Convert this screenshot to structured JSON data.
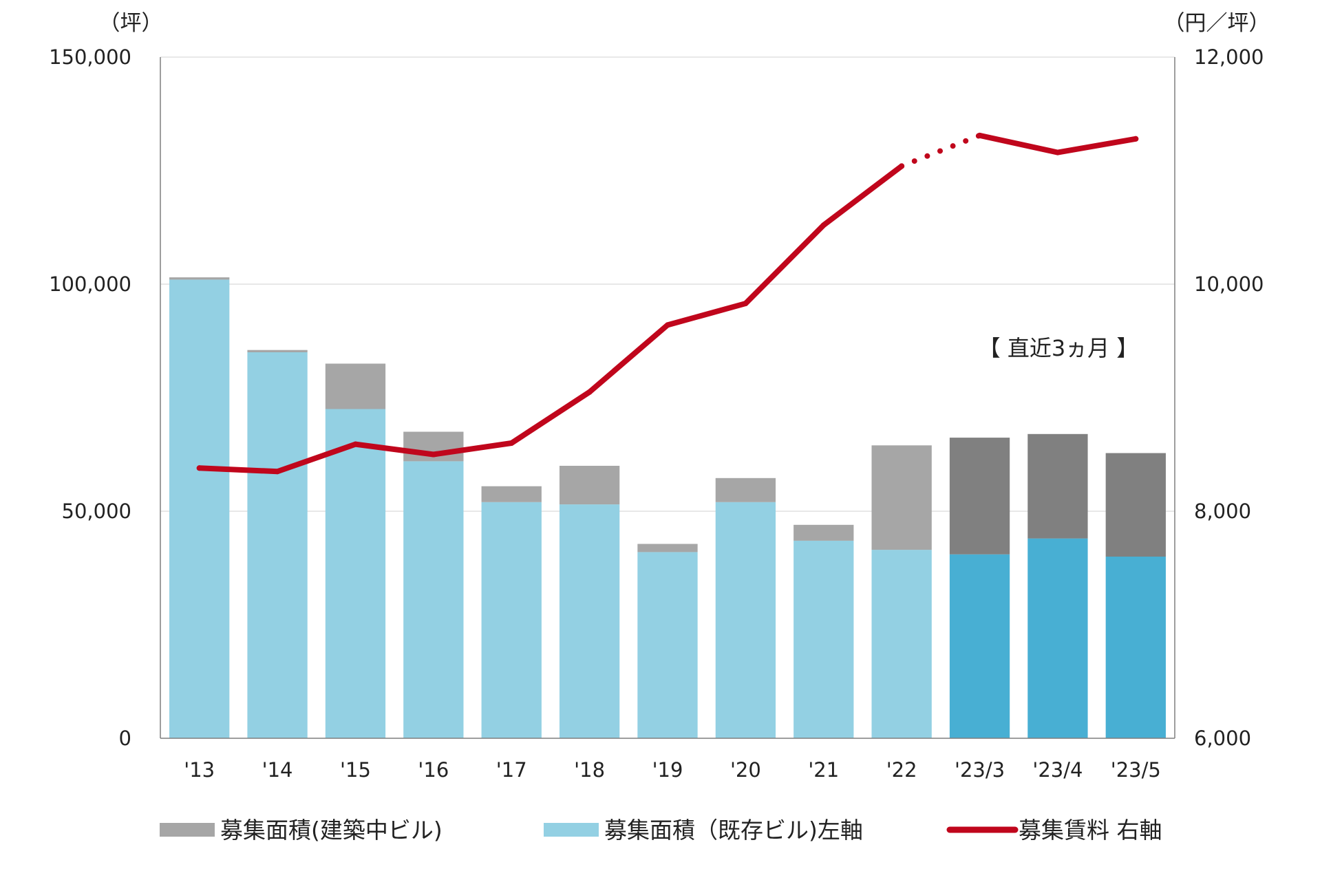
{
  "colors": {
    "existing_past": "#93d0e3",
    "existing_recent": "#48afd3",
    "construction_past": "#a6a6a6",
    "construction_recent": "#808080",
    "rent_line": "#c0061c",
    "gridline": "#d9d9d9",
    "axis": "#7f7f7f"
  },
  "chart_data": {
    "type": "bar",
    "subtype": "stacked bar + line, dual axis",
    "categories": [
      "'13",
      "'14",
      "'15",
      "'16",
      "'17",
      "'18",
      "'19",
      "'20",
      "'21",
      "'22",
      "'23/3",
      "'23/4",
      "'23/5"
    ],
    "recent_from_index": 10,
    "series": [
      {
        "name": "募集面積（既存ビル）左軸",
        "axis": "left",
        "type": "bar",
        "values": [
          101000,
          85000,
          72500,
          61000,
          52000,
          51500,
          41000,
          52000,
          43500,
          41500,
          40500,
          44000,
          40000
        ]
      },
      {
        "name": "募集面積（建築中ビル）",
        "axis": "left",
        "type": "bar",
        "values": [
          500,
          500,
          10000,
          6500,
          3500,
          8500,
          1800,
          5300,
          3500,
          23000,
          25700,
          23000,
          22800
        ]
      },
      {
        "name": "募集賃料 右軸",
        "axis": "right",
        "type": "line",
        "values": [
          8380,
          8350,
          8590,
          8500,
          8600,
          9050,
          9640,
          9830,
          10520,
          11040,
          11310,
          11160,
          11280
        ],
        "dotted_segment_after_index": 9
      }
    ],
    "y_left": {
      "unit": "（坪）",
      "lim": [
        0,
        150000
      ],
      "ticks": [
        0,
        50000,
        100000,
        150000
      ],
      "tick_labels": [
        "0",
        "50,000",
        "100,000",
        "150,000"
      ]
    },
    "y_right": {
      "unit": "（円／坪）",
      "lim": [
        6000,
        12000
      ],
      "ticks": [
        6000,
        8000,
        10000,
        12000
      ],
      "tick_labels": [
        "6,000",
        "8,000",
        "10,000",
        "12,000"
      ]
    },
    "annotation": "【 直近3ヵ月 】",
    "grid": true,
    "legend_position": "bottom",
    "legend": [
      {
        "label": "募集面積(建築中ビル)",
        "swatch": "construction"
      },
      {
        "label": "募集面積（既存ビル)左軸",
        "swatch": "existing"
      },
      {
        "label": "募集賃料 右軸",
        "swatch": "line"
      }
    ]
  }
}
